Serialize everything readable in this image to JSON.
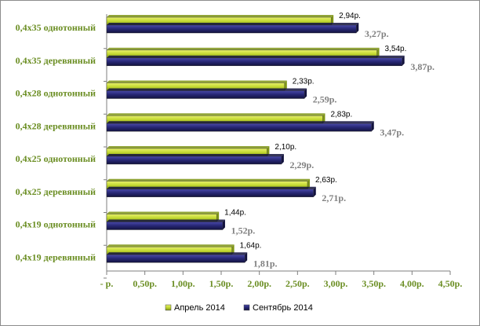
{
  "chart_data": {
    "type": "bar",
    "orientation": "horizontal",
    "categories": [
      "0,4x35 однотонный",
      "0,4x35 деревянный",
      "0,4x28 однотонный",
      "0,4x28 деревянный",
      "0,4x25 однотонный",
      "0,4x25 деревянный",
      "0,4x19 однотонный",
      "0,4x19 деревянный"
    ],
    "series": [
      {
        "name": "Апрель 2014",
        "color": "#c3d931",
        "values": [
          2.94,
          3.54,
          2.33,
          2.83,
          2.1,
          2.63,
          1.44,
          1.64
        ],
        "labels": [
          "2,94р.",
          "3,54р.",
          "2,33р.",
          "2,83р.",
          "2,10р.",
          "2,63р.",
          "1,44р.",
          "1,64р."
        ]
      },
      {
        "name": "Сентябрь 2014",
        "color": "#262673",
        "values": [
          3.27,
          3.87,
          2.59,
          3.47,
          2.29,
          2.71,
          1.52,
          1.81
        ],
        "labels": [
          "3,27р.",
          "3,87р.",
          "2,59р.",
          "3,47р.",
          "2,29р.",
          "2,71р.",
          "1,52р.",
          "1,81р."
        ]
      }
    ],
    "xlim": [
      0,
      4.5
    ],
    "xticks": [
      0,
      0.5,
      1.0,
      1.5,
      2.0,
      2.5,
      3.0,
      3.5,
      4.0,
      4.5
    ],
    "xtick_labels": [
      "- р.",
      "0,50р.",
      "1,00р.",
      "1,50р.",
      "2,00р.",
      "2,50р.",
      "3,00р.",
      "3,50р.",
      "4,00р.",
      "4,50р."
    ],
    "title": "",
    "xlabel": "",
    "ylabel": "",
    "grid": false,
    "legend_position": "bottom"
  }
}
